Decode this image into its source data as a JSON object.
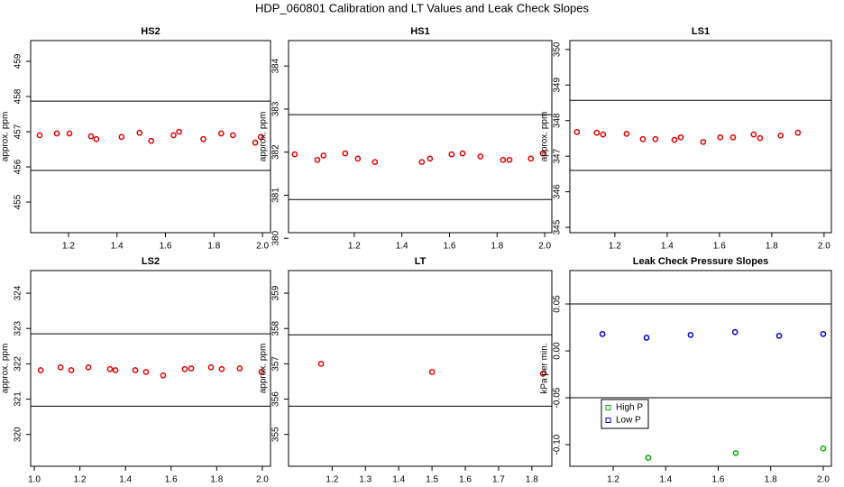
{
  "title": "HDP_060801  Calibration and LT Values and Leak Check Slopes",
  "chart_data": [
    {
      "type": "scatter",
      "title": "HS2",
      "ylabel": "approx. ppm",
      "xlim": [
        1.044,
        2.033
      ],
      "ylim": [
        454.13,
        459.59
      ],
      "xticks": [
        1.2,
        1.4,
        1.6,
        1.8,
        {
          "value": 2,
          "label": "2.0"
        }
      ],
      "yticks": [
        455,
        456,
        457,
        458,
        459
      ],
      "hlines": [
        457.87,
        455.9
      ],
      "series": [
        {
          "color": "#e00000",
          "x": [
            1.081,
            1.152,
            1.204,
            1.293,
            1.315,
            1.419,
            1.493,
            1.541,
            1.633,
            1.656,
            1.756,
            1.83,
            1.878,
            1.97,
            1.993
          ],
          "values": [
            456.9,
            456.95,
            456.95,
            456.87,
            456.79,
            456.85,
            456.97,
            456.74,
            456.9,
            457.0,
            456.79,
            456.95,
            456.9,
            456.69,
            456.85
          ]
        }
      ]
    },
    {
      "type": "scatter",
      "title": "HS1",
      "ylabel": "approx. ppm",
      "xlim": [
        0.924,
        2.03
      ],
      "ylim": [
        380.13,
        384.59
      ],
      "xticks": [
        1.2,
        1.4,
        1.6,
        1.8,
        {
          "value": 2,
          "label": "2.0"
        }
      ],
      "yticks": [
        380,
        381,
        382,
        383,
        384
      ],
      "hlines": [
        382.87,
        380.9
      ],
      "series": [
        {
          "color": "#e00000",
          "x": [
            0.95,
            1.045,
            1.071,
            1.162,
            1.215,
            1.287,
            1.484,
            1.518,
            1.609,
            1.655,
            1.73,
            1.825,
            1.852,
            1.942,
            1.992
          ],
          "values": [
            381.95,
            381.82,
            381.92,
            381.97,
            381.85,
            381.77,
            381.77,
            381.85,
            381.95,
            381.97,
            381.9,
            381.82,
            381.82,
            381.85,
            381.97
          ]
        }
      ]
    },
    {
      "type": "scatter",
      "title": "LS1",
      "ylabel": "approx. ppm",
      "xlim": [
        1.028,
        2.028
      ],
      "ylim": [
        344.85,
        350.25
      ],
      "xticks": [
        1.2,
        1.4,
        1.6,
        1.8,
        {
          "value": 2,
          "label": "2.0"
        }
      ],
      "yticks": [
        345,
        346,
        347,
        348,
        349,
        350
      ],
      "hlines": [
        348.57,
        346.6
      ],
      "series": [
        {
          "color": "#e00000",
          "x": [
            1.055,
            1.131,
            1.155,
            1.245,
            1.307,
            1.355,
            1.428,
            1.452,
            1.538,
            1.603,
            1.652,
            1.731,
            1.755,
            1.834,
            1.9
          ],
          "values": [
            347.68,
            347.66,
            347.61,
            347.63,
            347.48,
            347.48,
            347.46,
            347.53,
            347.4,
            347.53,
            347.53,
            347.61,
            347.51,
            347.58,
            347.66
          ]
        }
      ]
    },
    {
      "type": "scatter",
      "title": "LS2",
      "ylabel": "approx. ppm",
      "xlim": [
        0.984,
        2.036
      ],
      "ylim": [
        319.1,
        324.64
      ],
      "xticks": [
        {
          "value": 1,
          "label": "1.0"
        },
        1.2,
        1.4,
        1.6,
        1.8,
        {
          "value": 2,
          "label": "2.0"
        }
      ],
      "yticks": [
        320,
        321,
        322,
        323,
        324
      ],
      "hlines": [
        322.85,
        320.8
      ],
      "series": [
        {
          "color": "#e00000",
          "x": [
            1.028,
            1.115,
            1.162,
            1.237,
            1.332,
            1.356,
            1.443,
            1.49,
            1.565,
            1.66,
            1.688,
            1.775,
            1.822,
            1.901,
            1.996
          ],
          "values": [
            321.82,
            321.9,
            321.82,
            321.9,
            321.85,
            321.82,
            321.82,
            321.77,
            321.67,
            321.85,
            321.87,
            321.9,
            321.85,
            321.87,
            321.77
          ]
        }
      ]
    },
    {
      "type": "scatter",
      "title": "LT",
      "ylabel": "approx. ppm",
      "xlim": [
        1.069,
        1.86
      ],
      "ylim": [
        354.1,
        359.64
      ],
      "xticks": [
        1.2,
        1.3,
        1.4,
        1.5,
        1.6,
        1.7,
        1.8
      ],
      "yticks": [
        355,
        356,
        357,
        358,
        359
      ],
      "hlines": [
        357.82,
        355.8
      ],
      "series": [
        {
          "color": "#e00000",
          "x": [
            1.1667,
            1.5,
            1.8333
          ],
          "values": [
            357.0,
            356.77,
            356.72
          ]
        }
      ]
    },
    {
      "type": "scatter",
      "title": "Leak Check Pressure Slopes",
      "ylabel": "kPa per min.",
      "xlim": [
        1.035,
        2.031
      ],
      "ylim": [
        -0.123,
        0.0856
      ],
      "xticks": [
        1.2,
        1.4,
        1.6,
        1.8,
        {
          "value": 2,
          "label": "2.0"
        }
      ],
      "yticks": [
        {
          "value": -0.1,
          "label": "-0.10"
        },
        -0.05,
        {
          "value": 0,
          "label": "0.00"
        },
        0.05
      ],
      "hlines": [
        0.05,
        -0.05
      ],
      "legend": "bottom-left",
      "series": [
        {
          "name": "High P",
          "color": "#00b000",
          "x": [
            1.3333,
            1.6667,
            2.0
          ],
          "values": [
            -0.114,
            -0.109,
            -0.104
          ]
        },
        {
          "name": "Low P",
          "color": "#0000cc",
          "x": [
            1.159,
            1.327,
            1.495,
            1.664,
            1.832,
            2.0
          ],
          "values": [
            0.018,
            0.014,
            0.017,
            0.02,
            0.016,
            0.018
          ]
        }
      ]
    }
  ]
}
